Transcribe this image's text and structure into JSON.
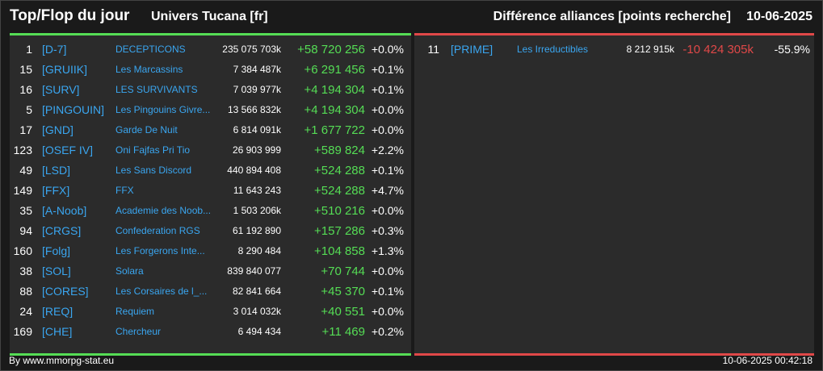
{
  "header": {
    "title": "Top/Flop du jour",
    "subtitle": "Univers Tucana [fr]",
    "right_title": "Différence alliances [points recherche]",
    "date": "10-06-2025"
  },
  "colors": {
    "positive": "#55dd55",
    "negative": "#e04848",
    "link": "#3aa6f0"
  },
  "top": [
    {
      "rank": "1",
      "tag": "[D-7]",
      "name": "DECEPTICONS",
      "points": "235 075 703k",
      "diff": "+58 720 256",
      "pct": "+0.0%"
    },
    {
      "rank": "15",
      "tag": "[GRUIIK]",
      "name": "Les Marcassins",
      "points": "7 384 487k",
      "diff": "+6 291 456",
      "pct": "+0.1%"
    },
    {
      "rank": "16",
      "tag": "[SURV]",
      "name": "LES SURVIVANTS",
      "points": "7 039 977k",
      "diff": "+4 194 304",
      "pct": "+0.1%"
    },
    {
      "rank": "5",
      "tag": "[PINGOUIN]",
      "name": "Les Pingouins Givre...",
      "points": "13 566 832k",
      "diff": "+4 194 304",
      "pct": "+0.0%"
    },
    {
      "rank": "17",
      "tag": "[GND]",
      "name": "Garde De Nuit",
      "points": "6 814 091k",
      "diff": "+1 677 722",
      "pct": "+0.0%"
    },
    {
      "rank": "123",
      "tag": "[OSEF IV]",
      "name": "Oni Fajfas Pri Tio",
      "points": "26 903 999",
      "diff": "+589 824",
      "pct": "+2.2%"
    },
    {
      "rank": "49",
      "tag": "[LSD]",
      "name": "Les Sans Discord",
      "points": "440 894 408",
      "diff": "+524 288",
      "pct": "+0.1%"
    },
    {
      "rank": "149",
      "tag": "[FFX]",
      "name": "FFX",
      "points": "11 643 243",
      "diff": "+524 288",
      "pct": "+4.7%"
    },
    {
      "rank": "35",
      "tag": "[A-Noob]",
      "name": "Academie des Noob...",
      "points": "1 503 206k",
      "diff": "+510 216",
      "pct": "+0.0%"
    },
    {
      "rank": "94",
      "tag": "[CRGS]",
      "name": "Confederation RGS",
      "points": "61 192 890",
      "diff": "+157 286",
      "pct": "+0.3%"
    },
    {
      "rank": "160",
      "tag": "[Folg]",
      "name": "Les Forgerons Inte...",
      "points": "8 290 484",
      "diff": "+104 858",
      "pct": "+1.3%"
    },
    {
      "rank": "38",
      "tag": "[SOL]",
      "name": "Solara",
      "points": "839 840 077",
      "diff": "+70 744",
      "pct": "+0.0%"
    },
    {
      "rank": "88",
      "tag": "[CORES]",
      "name": "Les Corsaires de l_...",
      "points": "82 841 664",
      "diff": "+45 370",
      "pct": "+0.1%"
    },
    {
      "rank": "24",
      "tag": "[REQ]",
      "name": "Requiem",
      "points": "3 014 032k",
      "diff": "+40 551",
      "pct": "+0.0%"
    },
    {
      "rank": "169",
      "tag": "[CHE]",
      "name": "Chercheur",
      "points": "6 494 434",
      "diff": "+11 469",
      "pct": "+0.2%"
    }
  ],
  "flop": [
    {
      "rank": "11",
      "tag": "[PRIME]",
      "name": "Les Irreductibles",
      "points": "8 212 915k",
      "diff": "-10 424 305k",
      "pct": "-55.9%"
    }
  ],
  "footer": {
    "credit": "By www.mmorpg-stat.eu",
    "timestamp": "10-06-2025 00:42:18"
  }
}
